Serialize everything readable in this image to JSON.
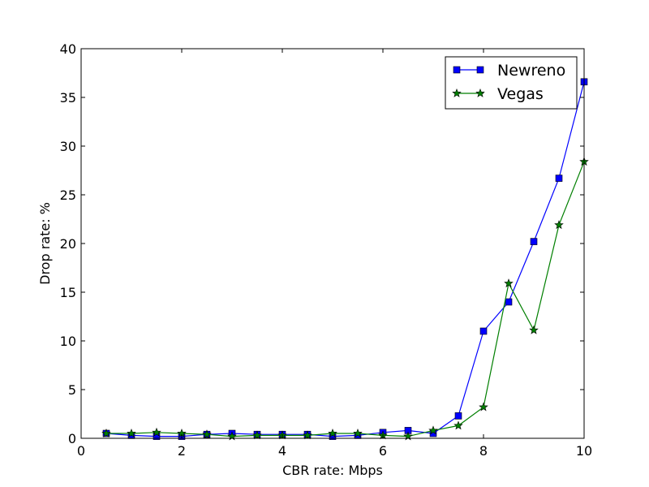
{
  "chart_data": {
    "type": "line",
    "title": "",
    "xlabel": "CBR rate: Mbps",
    "ylabel": "Drop rate: %",
    "xlim": [
      0,
      10
    ],
    "ylim": [
      0,
      40
    ],
    "xticks": [
      0,
      2,
      4,
      6,
      8,
      10
    ],
    "yticks": [
      0,
      5,
      10,
      15,
      20,
      25,
      30,
      35,
      40
    ],
    "grid": false,
    "legend_position": "top-right",
    "series": [
      {
        "name": "Newreno",
        "color": "#0000ff",
        "marker": "square",
        "x": [
          0.5,
          1.0,
          1.5,
          2.0,
          2.5,
          3.0,
          3.5,
          4.0,
          4.5,
          5.0,
          5.5,
          6.0,
          6.5,
          7.0,
          7.5,
          8.0,
          8.5,
          9.0,
          9.5,
          10.0
        ],
        "y": [
          0.5,
          0.3,
          0.2,
          0.2,
          0.4,
          0.5,
          0.4,
          0.4,
          0.4,
          0.2,
          0.3,
          0.6,
          0.8,
          0.5,
          2.3,
          11.0,
          14.0,
          20.2,
          26.7,
          36.6
        ]
      },
      {
        "name": "Vegas",
        "color": "#007f00",
        "marker": "star",
        "x": [
          0.5,
          1.0,
          1.5,
          2.0,
          2.5,
          3.0,
          3.5,
          4.0,
          4.5,
          5.0,
          5.5,
          6.0,
          6.5,
          7.0,
          7.5,
          8.0,
          8.5,
          9.0,
          9.5,
          10.0
        ],
        "y": [
          0.5,
          0.5,
          0.6,
          0.5,
          0.4,
          0.2,
          0.3,
          0.3,
          0.3,
          0.5,
          0.5,
          0.3,
          0.2,
          0.8,
          1.3,
          3.2,
          15.9,
          11.1,
          21.9,
          28.4
        ]
      }
    ]
  }
}
